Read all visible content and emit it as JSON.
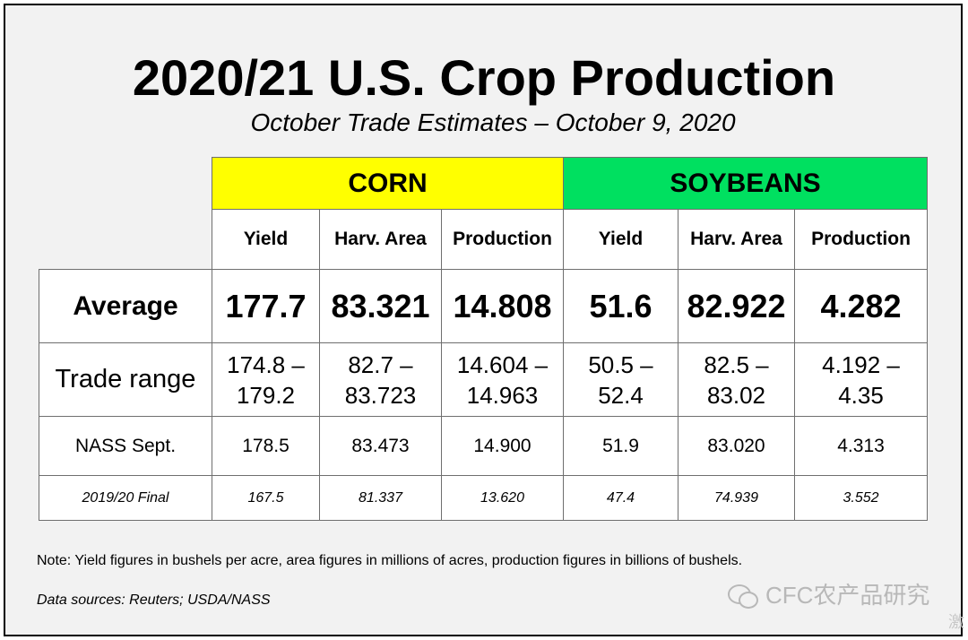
{
  "title": "2020/21 U.S. Crop Production",
  "subtitle": "October Trade Estimates – October 9, 2020",
  "groups": {
    "corn": "CORN",
    "soybeans": "SOYBEANS"
  },
  "columns": [
    "Yield",
    "Harv. Area",
    "Production",
    "Yield",
    "Harv. Area",
    "Production"
  ],
  "rows": {
    "average": {
      "label": "Average",
      "values": [
        "177.7",
        "83.321",
        "14.808",
        "51.6",
        "82.922",
        "4.282"
      ]
    },
    "trade_range": {
      "label": "Trade range",
      "values": [
        [
          "174.8 –",
          "179.2"
        ],
        [
          "82.7 –",
          "83.723"
        ],
        [
          "14.604 –",
          "14.963"
        ],
        [
          "50.5 –",
          "52.4"
        ],
        [
          "82.5 –",
          "83.02"
        ],
        [
          "4.192 –",
          "4.35"
        ]
      ]
    },
    "nass_sept": {
      "label": "NASS Sept.",
      "values": [
        "178.5",
        "83.473",
        "14.900",
        "51.9",
        "83.020",
        "4.313"
      ]
    },
    "final_2019_20": {
      "label": "2019/20 Final",
      "values": [
        "167.5",
        "81.337",
        "13.620",
        "47.4",
        "74.939",
        "3.552"
      ]
    }
  },
  "note": "Note: Yield figures in bushels per acre, area figures in millions of acres, production figures in billions of bushels.",
  "sources": "Data sources: Reuters; USDA/NASS",
  "watermark": "CFC农产品研究",
  "edge_char": "激",
  "colors": {
    "corn": "#ffff00",
    "soybeans": "#00e060",
    "background": "#f2f2f2"
  }
}
